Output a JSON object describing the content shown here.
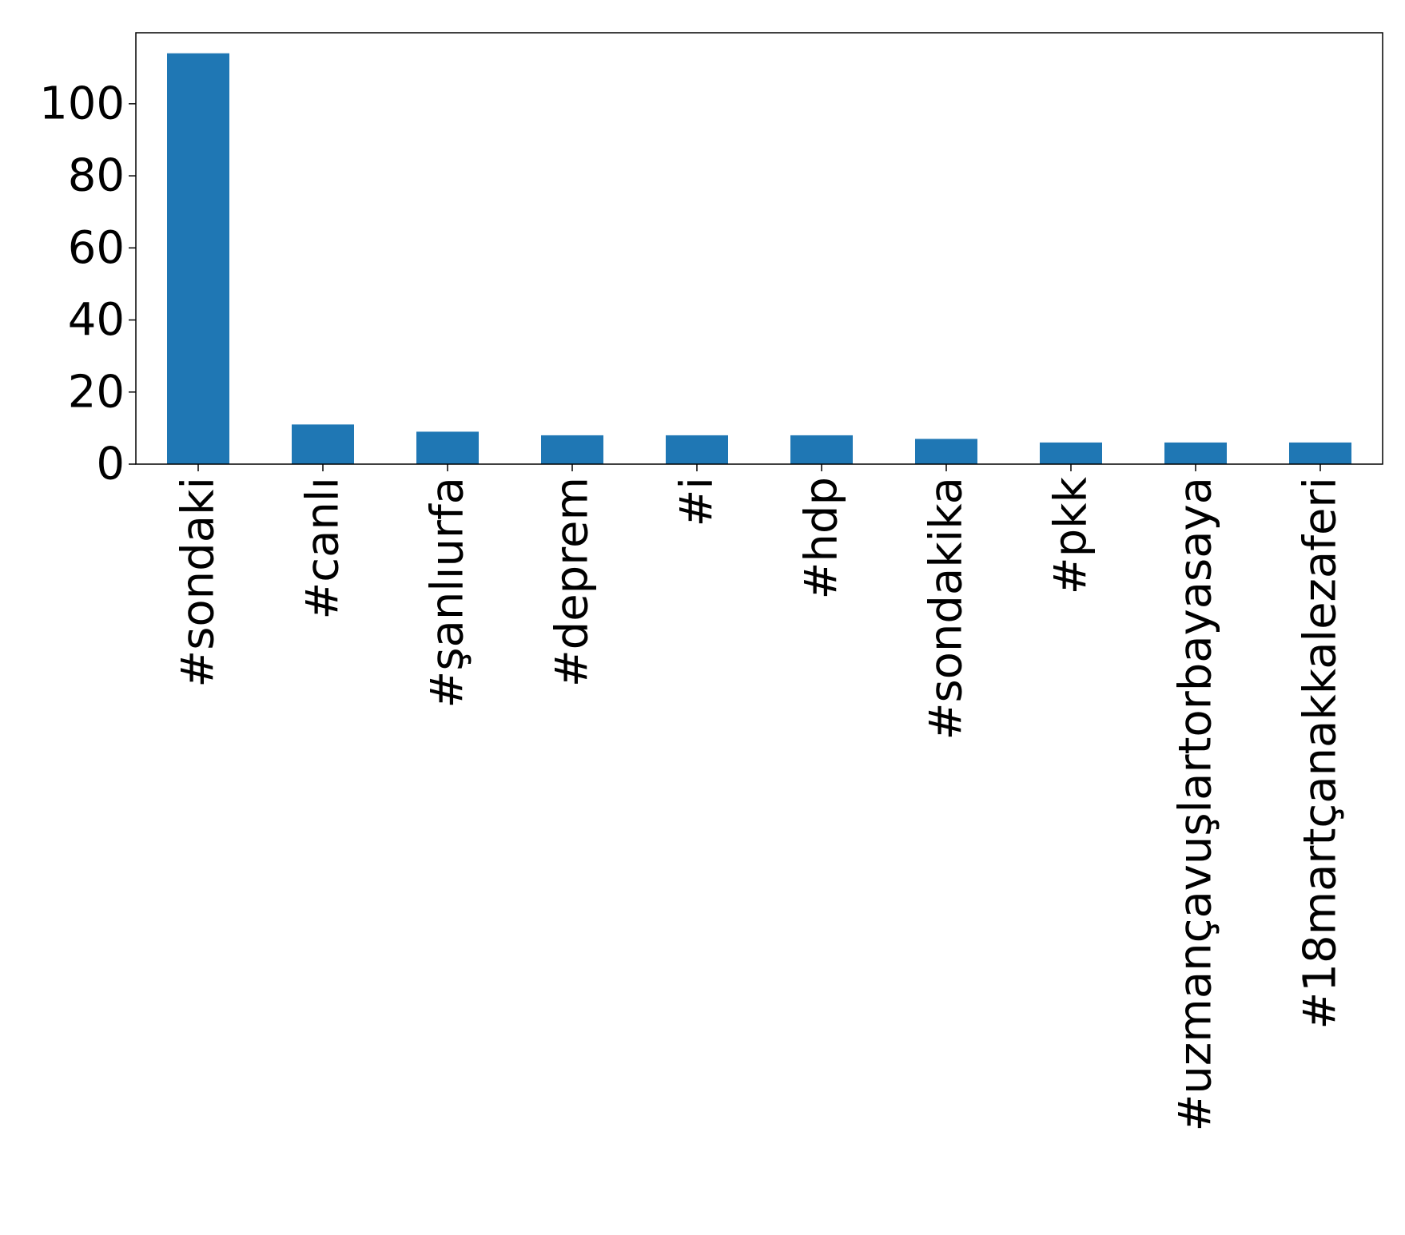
{
  "chart_data": {
    "type": "bar",
    "title": "",
    "xlabel": "",
    "ylabel": "",
    "categories": [
      "#sondaki",
      "#canlı",
      "#şanlıurfa",
      "#deprem",
      "#i",
      "#hdp",
      "#sondakika",
      "#pkk",
      "#uzmançavuşlartorbayasaya",
      "#18martçanakkalezaferi"
    ],
    "values": [
      114,
      11,
      9,
      8,
      8,
      8,
      7,
      6,
      6,
      6
    ],
    "ylim": [
      0,
      119.7
    ],
    "yticks": [
      0,
      20,
      40,
      60,
      80,
      100
    ],
    "bar_color": "#1f77b4",
    "grid": false,
    "legend": false
  }
}
